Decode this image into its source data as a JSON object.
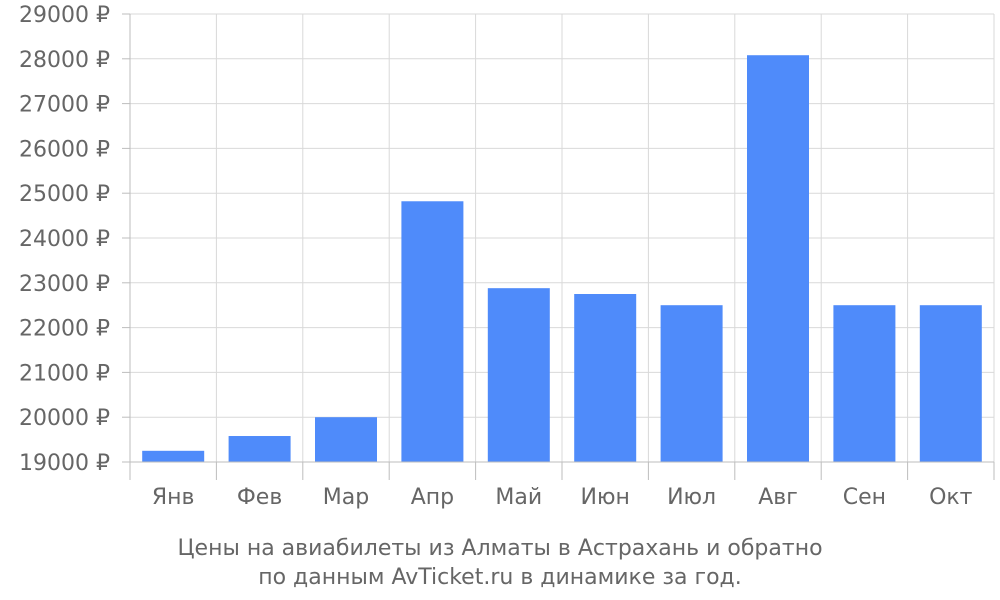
{
  "chart_data": {
    "type": "bar",
    "categories": [
      "Янв",
      "Фев",
      "Мар",
      "Апр",
      "Май",
      "Июн",
      "Июл",
      "Авг",
      "Сен",
      "Окт"
    ],
    "values": [
      19250,
      19580,
      20000,
      24820,
      22880,
      22750,
      22500,
      28080,
      22500,
      22500
    ],
    "ylim": [
      19000,
      29000
    ],
    "y_ticks": [
      "19000 ₽",
      "20000 ₽",
      "21000 ₽",
      "22000 ₽",
      "23000 ₽",
      "24000 ₽",
      "25000 ₽",
      "26000 ₽",
      "27000 ₽",
      "28000 ₽",
      "29000 ₽"
    ],
    "grid": true,
    "bar_color": "#4f8bfa",
    "caption_line1": "Цены на авиабилеты из Алматы в Астрахань и обратно",
    "caption_line2": "по данным AvTicket.ru в динамике за год."
  }
}
